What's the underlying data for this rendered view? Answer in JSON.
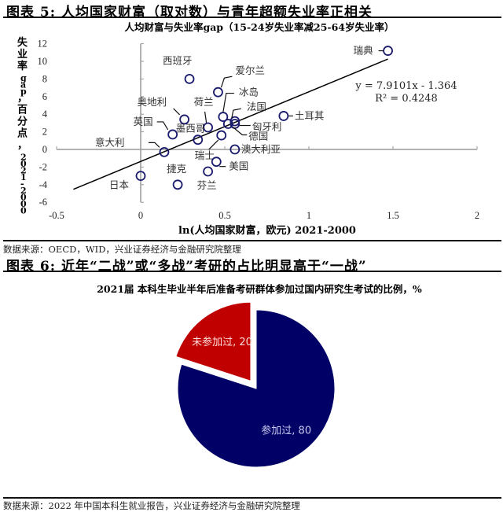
{
  "figure5": {
    "heading": "图表 5: 人均国家财富（取对数）与青年超额失业率正相关",
    "source": "数据来源：OECD，WID，兴业证券经济与金融研究院整理"
  },
  "figure6": {
    "heading": "图表 6:   近年“二战”或“多战”考研的占比明显高于“一战”",
    "source": "数据来源：2022 年中国本科生就业报告，兴业证券经济与金融研究院整理"
  },
  "chart_data": [
    {
      "type": "scatter",
      "title": "人均财富与失业率gap（15-24岁失业率减25-64岁失业率）",
      "xlabel": "ln(人均国家财富，欧元) 2021-2000",
      "ylabel": "失业率gap，百分点，2021-2000",
      "xlim": [
        -0.5,
        2
      ],
      "ylim": [
        -6,
        12
      ],
      "xticks": [
        "-0.5",
        "0",
        "0.5",
        "1",
        "1.5",
        "2"
      ],
      "yticks": [
        "12",
        "10",
        "8",
        "6",
        "4",
        "2",
        "0",
        "-2",
        "-4",
        "-6"
      ],
      "grid": false,
      "points": [
        {
          "label": "瑞典",
          "x": 1.47,
          "y": 11.2
        },
        {
          "label": "西班牙",
          "x": 0.29,
          "y": 8.0
        },
        {
          "label": "爱尔兰",
          "x": 0.46,
          "y": 6.5
        },
        {
          "label": "冰岛",
          "x": 0.49,
          "y": 3.7
        },
        {
          "label": "法国",
          "x": 0.56,
          "y": 3.2
        },
        {
          "label": "匈牙利",
          "x": 0.56,
          "y": 2.9
        },
        {
          "label": "德国",
          "x": 0.52,
          "y": 2.9
        },
        {
          "label": "土耳其",
          "x": 0.85,
          "y": 3.8
        },
        {
          "label": "奥地利",
          "x": 0.26,
          "y": 3.4
        },
        {
          "label": "荷兰",
          "x": 0.4,
          "y": 2.5
        },
        {
          "label": "英国",
          "x": 0.19,
          "y": 1.7
        },
        {
          "label": "墨西哥",
          "x": 0.34,
          "y": 1.1
        },
        {
          "label": "瑞士",
          "x": 0.48,
          "y": 1.6
        },
        {
          "label": "意大利",
          "x": 0.14,
          "y": -0.3
        },
        {
          "label": "澳大利亚",
          "x": 0.56,
          "y": 0.0
        },
        {
          "label": "美国",
          "x": 0.45,
          "y": -1.4
        },
        {
          "label": "芬兰",
          "x": 0.4,
          "y": -2.5
        },
        {
          "label": "捷克",
          "x": 0.22,
          "y": -4.0
        },
        {
          "label": "日本",
          "x": 0.0,
          "y": -3.0
        }
      ],
      "trendline": {
        "slope": 7.9101,
        "intercept": -1.364,
        "x_range": [
          -0.4,
          1.47
        ]
      },
      "annotations": [
        "y = 7.9101x - 1.364",
        "R² = 0.4248"
      ],
      "marker_color": "#1a1a6e",
      "line_color": "#000000"
    },
    {
      "type": "pie",
      "title": "2021届 本科生毕业半年后准备考研群体参加过国内研究生考试的比例，%",
      "categories": [
        "参加过",
        "未参加过"
      ],
      "values": [
        80,
        20
      ],
      "labels": [
        "参加过, 80",
        "未参加过, 20"
      ],
      "colors": [
        "#000066",
        "#c00000"
      ],
      "exploded": [
        "未参加过"
      ]
    }
  ]
}
